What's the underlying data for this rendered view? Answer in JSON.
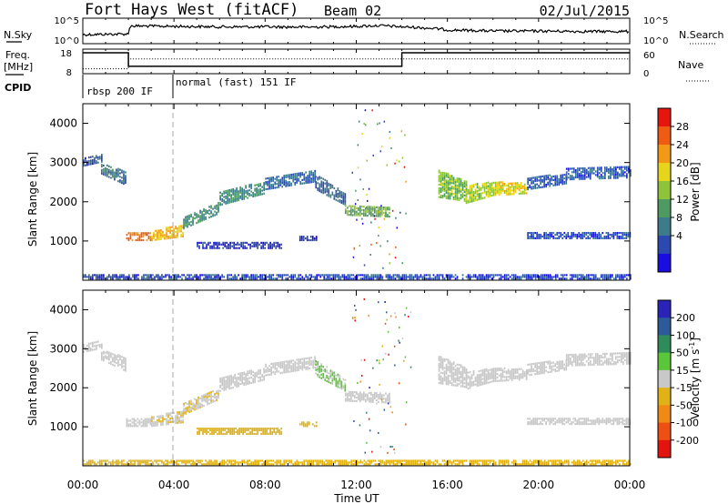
{
  "header": {
    "radar": "Fort Hays West (fitACF)",
    "beam": "Beam 02",
    "date": "02/Jul/2015"
  },
  "top_panels": {
    "nsky_label": "N.Sky",
    "nsky_ticks": [
      "10^5",
      "10^0"
    ],
    "nsearch_label": "N.Search",
    "nsearch_ticks": [
      "10^5",
      "10^0"
    ],
    "freq_label": "Freq.",
    "freq_unit": "[MHz]",
    "freq_ticks": [
      "18",
      "8"
    ],
    "nave_label": "Nave",
    "nave_ticks": [
      "60",
      "0"
    ],
    "cpid_label": "CPID",
    "cpid_segments": [
      {
        "label": "rbsp 200 IF",
        "start": 0.0,
        "end": 4.0
      },
      {
        "label": "normal (fast) 151 IF",
        "start": 4.0,
        "end": 24.0
      }
    ]
  },
  "time_axis": {
    "label": "Time UT",
    "ticks": [
      "00:00",
      "04:00",
      "08:00",
      "12:00",
      "16:00",
      "20:00",
      "00:00"
    ]
  },
  "power_scale": {
    "label": "Power [dB]",
    "ticks": [
      "28",
      "24",
      "20",
      "16",
      "12",
      "8",
      "4"
    ],
    "colors": [
      "#1a0de0",
      "#2b49b0",
      "#3d7a8a",
      "#4e9a62",
      "#8ec43a",
      "#e6d51a",
      "#f29a15",
      "#ef5b12",
      "#e4160e"
    ]
  },
  "velocity_scale": {
    "label": "Velocity [m s",
    "label_sup": "-1",
    "label_end": "]",
    "ticks": [
      "200",
      "100",
      "50",
      "15",
      "-15",
      "-50",
      "-100",
      "-200"
    ],
    "colors": [
      "#2a23b8",
      "#2d5b9a",
      "#2f8c5a",
      "#5cc63a",
      "#c8c8c8",
      "#e0b216",
      "#f08a14",
      "#ee5013",
      "#e3140d"
    ]
  },
  "chart_data": [
    {
      "type": "line",
      "panel": "N.Sky / N.Search",
      "x_label": "Time UT",
      "xlim": [
        0,
        24
      ],
      "y_scale": "log",
      "ylim": [
        1,
        100000
      ],
      "series": [
        {
          "values_x": [
            0,
            2,
            2.1,
            4,
            6,
            8,
            10,
            12,
            13,
            14,
            16,
            18,
            20,
            22,
            24
          ],
          "values_y": [
            60,
            80,
            3000,
            2500,
            2000,
            2000,
            1800,
            2500,
            3500,
            2000,
            500,
            300,
            300,
            250,
            250
          ]
        }
      ]
    },
    {
      "type": "line",
      "panel": "Freq. / Nave",
      "x_label": "Time UT",
      "xlim": [
        0,
        24
      ],
      "ylim": [
        8,
        18
      ],
      "series": [
        {
          "name": "Freq.",
          "values_x": [
            0,
            2.0,
            2.0,
            14.0,
            14.0,
            24
          ],
          "values_y": [
            16.5,
            16.5,
            11.0,
            11.0,
            16.5,
            16.5
          ]
        },
        {
          "name": "Nave",
          "values_x": [
            0,
            2.0,
            2.0,
            24
          ],
          "values_y": [
            10,
            10,
            14,
            14
          ]
        }
      ]
    },
    {
      "type": "heatmap",
      "panel": "power",
      "xlabel": "Time UT",
      "ylabel": "Slant Range [km]",
      "xlim": [
        0,
        24
      ],
      "ylim": [
        0,
        4500
      ],
      "y_ticks": [
        1000,
        2000,
        3000,
        4000
      ],
      "value_label": "Power [dB]",
      "value_range": [
        0,
        30
      ],
      "bands": [
        {
          "x0": 0.0,
          "x1": 0.8,
          "ylo": [
            2900,
            3000
          ],
          "yhi": [
            3100,
            3200
          ],
          "value": 6
        },
        {
          "x0": 0.8,
          "x1": 1.9,
          "ylo": [
            2700,
            2400
          ],
          "yhi": [
            2950,
            2750
          ],
          "value": 8
        },
        {
          "x0": 1.9,
          "x1": 3.0,
          "ylo": [
            1000,
            1000
          ],
          "yhi": [
            1200,
            1200
          ],
          "value": 24
        },
        {
          "x0": 3.0,
          "x1": 4.4,
          "ylo": [
            1000,
            1100
          ],
          "yhi": [
            1250,
            1400
          ],
          "value": 20
        },
        {
          "x0": 4.4,
          "x1": 6.0,
          "ylo": [
            1300,
            1700
          ],
          "yhi": [
            1600,
            2000
          ],
          "value": 10
        },
        {
          "x0": 6.0,
          "x1": 8.0,
          "ylo": [
            1900,
            2200
          ],
          "yhi": [
            2250,
            2500
          ],
          "value": 10
        },
        {
          "x0": 8.0,
          "x1": 10.2,
          "ylo": [
            2300,
            2500
          ],
          "yhi": [
            2600,
            2800
          ],
          "value": 7
        },
        {
          "x0": 10.2,
          "x1": 11.5,
          "ylo": [
            2300,
            1900
          ],
          "yhi": [
            2700,
            2200
          ],
          "value": 7
        },
        {
          "x0": 11.5,
          "x1": 13.5,
          "ylo": [
            1650,
            1600
          ],
          "yhi": [
            1900,
            1850
          ],
          "value": 13
        },
        {
          "x0": 15.6,
          "x1": 16.8,
          "ylo": [
            2100,
            2000
          ],
          "yhi": [
            2800,
            2500
          ],
          "value": 14
        },
        {
          "x0": 16.8,
          "x1": 18.0,
          "ylo": [
            1950,
            2150
          ],
          "yhi": [
            2400,
            2500
          ],
          "value": 16
        },
        {
          "x0": 18.0,
          "x1": 19.5,
          "ylo": [
            2150,
            2200
          ],
          "yhi": [
            2500,
            2450
          ],
          "value": 18
        },
        {
          "x0": 19.5,
          "x1": 21.2,
          "ylo": [
            2300,
            2450
          ],
          "yhi": [
            2600,
            2700
          ],
          "value": 6
        },
        {
          "x0": 21.2,
          "x1": 24.0,
          "ylo": [
            2550,
            2600
          ],
          "yhi": [
            2850,
            2900
          ],
          "value": 6
        },
        {
          "x0": 5.0,
          "x1": 8.7,
          "ylo": [
            800,
            800
          ],
          "yhi": [
            950,
            950
          ],
          "value": 4
        },
        {
          "x0": 9.5,
          "x1": 10.3,
          "ylo": [
            1000,
            1000
          ],
          "yhi": [
            1100,
            1100
          ],
          "value": 4
        },
        {
          "x0": 19.5,
          "x1": 24.0,
          "ylo": [
            1050,
            1050
          ],
          "yhi": [
            1200,
            1200
          ],
          "value": 5
        },
        {
          "x0": 0.0,
          "x1": 24.0,
          "ylo": [
            20,
            20
          ],
          "yhi": [
            150,
            150
          ],
          "value": 5
        }
      ]
    },
    {
      "type": "heatmap",
      "panel": "velocity",
      "xlabel": "Time UT",
      "ylabel": "Slant Range [km]",
      "xlim": [
        0,
        24
      ],
      "ylim": [
        0,
        4500
      ],
      "y_ticks": [
        1000,
        2000,
        3000,
        4000
      ],
      "value_label": "Velocity [m s-1]",
      "value_range": [
        -250,
        250
      ],
      "bands": [
        {
          "x0": 0.0,
          "x1": 0.8,
          "ylo": [
            2900,
            3000
          ],
          "yhi": [
            3100,
            3200
          ],
          "value": 0
        },
        {
          "x0": 0.8,
          "x1": 1.9,
          "ylo": [
            2700,
            2400
          ],
          "yhi": [
            2950,
            2750
          ],
          "value": 0
        },
        {
          "x0": 1.9,
          "x1": 3.0,
          "ylo": [
            1000,
            1000
          ],
          "yhi": [
            1200,
            1200
          ],
          "value": 0
        },
        {
          "x0": 3.0,
          "x1": 4.4,
          "ylo": [
            1000,
            1100
          ],
          "yhi": [
            1250,
            1400
          ],
          "value": -20
        },
        {
          "x0": 4.4,
          "x1": 6.0,
          "ylo": [
            1300,
            1700
          ],
          "yhi": [
            1600,
            2000
          ],
          "value": -25
        },
        {
          "x0": 6.0,
          "x1": 8.0,
          "ylo": [
            1900,
            2200
          ],
          "yhi": [
            2250,
            2500
          ],
          "value": 0
        },
        {
          "x0": 8.0,
          "x1": 10.2,
          "ylo": [
            2300,
            2500
          ],
          "yhi": [
            2600,
            2800
          ],
          "value": 0
        },
        {
          "x0": 10.2,
          "x1": 11.5,
          "ylo": [
            2300,
            1900
          ],
          "yhi": [
            2700,
            2200
          ],
          "value": 30
        },
        {
          "x0": 11.5,
          "x1": 13.5,
          "ylo": [
            1650,
            1600
          ],
          "yhi": [
            1900,
            1850
          ],
          "value": 0
        },
        {
          "x0": 15.6,
          "x1": 16.8,
          "ylo": [
            2100,
            2000
          ],
          "yhi": [
            2800,
            2500
          ],
          "value": 0
        },
        {
          "x0": 16.8,
          "x1": 18.0,
          "ylo": [
            1950,
            2150
          ],
          "yhi": [
            2400,
            2500
          ],
          "value": 0
        },
        {
          "x0": 18.0,
          "x1": 19.5,
          "ylo": [
            2150,
            2200
          ],
          "yhi": [
            2500,
            2450
          ],
          "value": 0
        },
        {
          "x0": 19.5,
          "x1": 21.2,
          "ylo": [
            2300,
            2450
          ],
          "yhi": [
            2600,
            2700
          ],
          "value": 0
        },
        {
          "x0": 21.2,
          "x1": 24.0,
          "ylo": [
            2550,
            2600
          ],
          "yhi": [
            2850,
            2900
          ],
          "value": 0
        },
        {
          "x0": 5.0,
          "x1": 8.7,
          "ylo": [
            800,
            800
          ],
          "yhi": [
            950,
            950
          ],
          "value": -60
        },
        {
          "x0": 9.5,
          "x1": 10.3,
          "ylo": [
            1000,
            1000
          ],
          "yhi": [
            1100,
            1100
          ],
          "value": -60
        },
        {
          "x0": 19.5,
          "x1": 24.0,
          "ylo": [
            1050,
            1050
          ],
          "yhi": [
            1200,
            1200
          ],
          "value": 0
        },
        {
          "x0": 0.0,
          "x1": 24.0,
          "ylo": [
            20,
            20
          ],
          "yhi": [
            150,
            150
          ],
          "value": -60
        }
      ]
    }
  ]
}
